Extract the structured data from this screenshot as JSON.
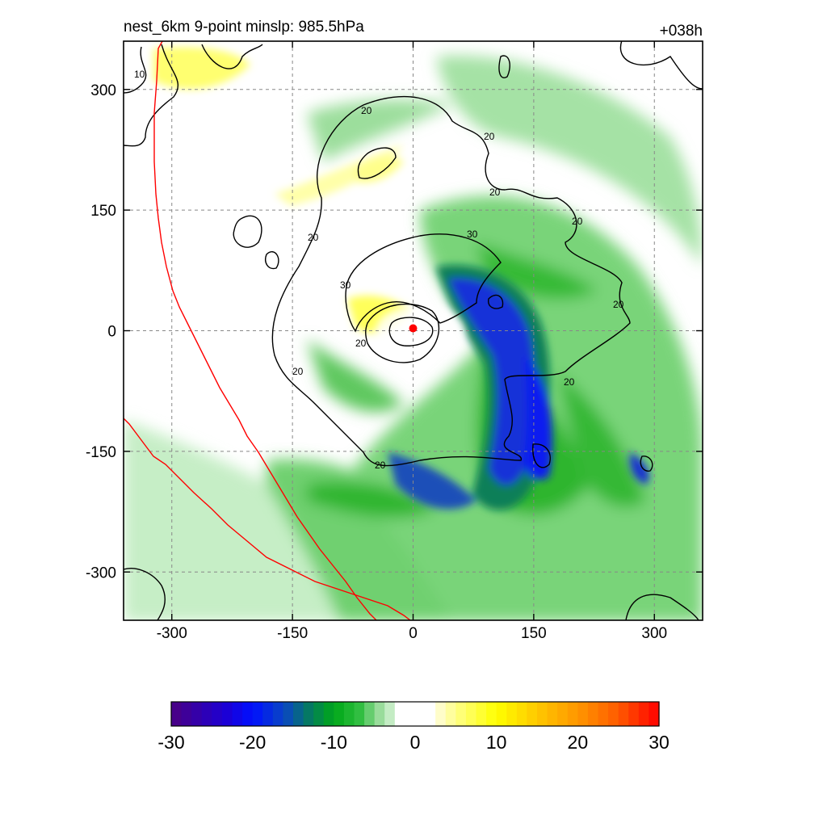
{
  "chart_data": {
    "type": "heatmap",
    "title_left": "nest_6km  9-point minslp: 985.5hPa",
    "title_right": "+038h",
    "xlabel": "",
    "ylabel": "",
    "xlim": [
      -360,
      360
    ],
    "ylim": [
      -360,
      360
    ],
    "x_ticks": [
      -300,
      -150,
      0,
      150,
      300
    ],
    "y_ticks": [
      300,
      150,
      0,
      -150,
      -300
    ],
    "grid": true,
    "center_marker": {
      "x": 0,
      "y": 0,
      "color": "#ff0000"
    },
    "colorbar": {
      "min": -30,
      "max": 30,
      "ticks": [
        -30,
        -20,
        -10,
        0,
        10,
        20,
        30
      ],
      "n_bins": 48,
      "white_range": [
        -2.5,
        2.5
      ],
      "anchors": [
        {
          "v": -30,
          "c": "#4b0082"
        },
        {
          "v": -23,
          "c": "#1a00d8"
        },
        {
          "v": -20,
          "c": "#0010ff"
        },
        {
          "v": -16,
          "c": "#0a48c0"
        },
        {
          "v": -13,
          "c": "#057a60"
        },
        {
          "v": -10,
          "c": "#00a818"
        },
        {
          "v": -7,
          "c": "#2cbc3c"
        },
        {
          "v": -4,
          "c": "#a8e0a8"
        },
        {
          "v": -2.5,
          "c": "#d8f4d8"
        },
        {
          "v": 2.5,
          "c": "#fffce0"
        },
        {
          "v": 5,
          "c": "#ffff88"
        },
        {
          "v": 10,
          "c": "#ffff00"
        },
        {
          "v": 15,
          "c": "#ffc800"
        },
        {
          "v": 20,
          "c": "#ff9600"
        },
        {
          "v": 25,
          "c": "#ff5a00"
        },
        {
          "v": 30,
          "c": "#ff0000"
        }
      ]
    },
    "contour_levels": [
      10,
      20,
      30
    ],
    "contour_labels": [
      "10",
      "20",
      "20",
      "20",
      "20",
      "20",
      "20",
      "20",
      "20",
      "20",
      "20",
      "30",
      "30"
    ],
    "boundary_line_color": "#ff0000"
  }
}
